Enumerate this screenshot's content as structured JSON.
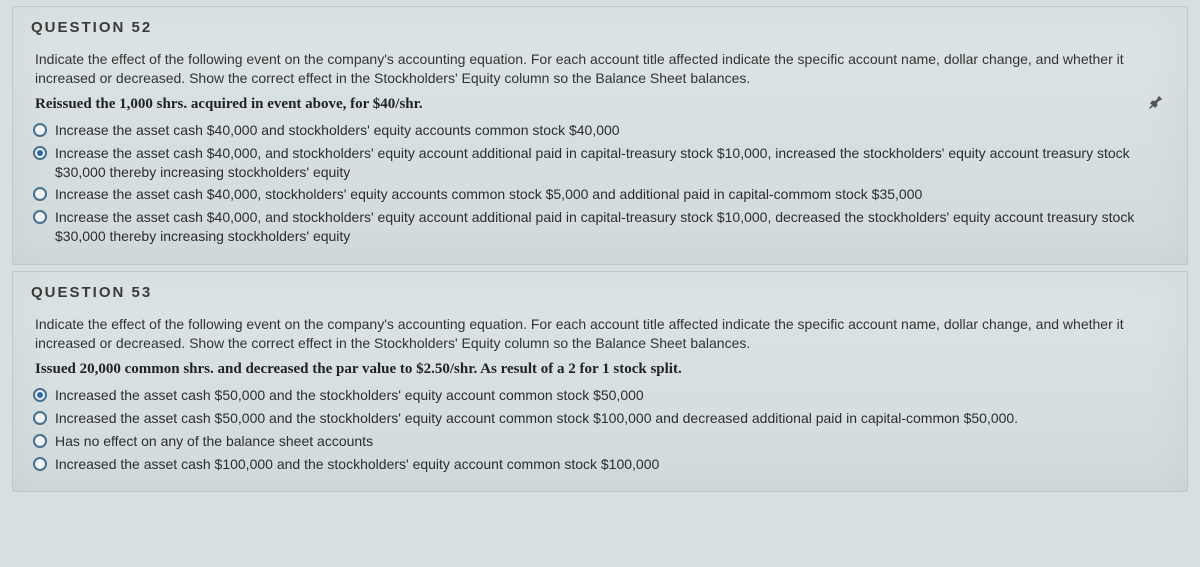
{
  "questions": [
    {
      "title": "QUESTION 52",
      "prompt": "Indicate the effect of the following event on the company's accounting equation. For each account title affected indicate the specific account name, dollar change, and whether it increased or decreased.  Show the correct effect in the Stockholders' Equity column so the Balance Sheet balances.",
      "bold": "Reissued the 1,000 shrs. acquired in event above, for $40/shr.",
      "show_pin": true,
      "selected": 1,
      "options": [
        "Increase the asset cash $40,000 and stockholders' equity accounts common stock $40,000",
        "Increase the asset cash $40,000, and stockholders' equity account additional paid in capital-treasury stock $10,000, increased the stockholders' equity account treasury stock $30,000 thereby increasing stockholders' equity",
        "Increase the asset cash $40,000, stockholders' equity accounts common stock $5,000 and additional paid in capital-commom stock $35,000",
        "Increase the asset cash $40,000, and stockholders' equity account additional paid in capital-treasury stock $10,000, decreased the stockholders' equity account treasury stock $30,000 thereby increasing stockholders' equity"
      ]
    },
    {
      "title": "QUESTION 53",
      "prompt": "Indicate the effect of the following event on the company's accounting equation. For each account title affected indicate the specific account name, dollar change, and whether it increased or decreased.  Show the correct effect in the Stockholders' Equity column so the Balance Sheet balances.",
      "bold": "Issued 20,000 common shrs. and decreased the par value to $2.50/shr. As result of a 2 for 1 stock split.",
      "show_pin": false,
      "selected": 0,
      "options": [
        "Increased the asset cash $50,000 and the stockholders' equity account common stock $50,000",
        "Increased the asset cash $50,000 and the stockholders' equity account common stock $100,000 and decreased additional paid in capital-common $50,000.",
        "Has no effect on any of the balance sheet accounts",
        "Increased the asset cash $100,000 and the stockholders' equity account common stock $100,000"
      ]
    }
  ]
}
